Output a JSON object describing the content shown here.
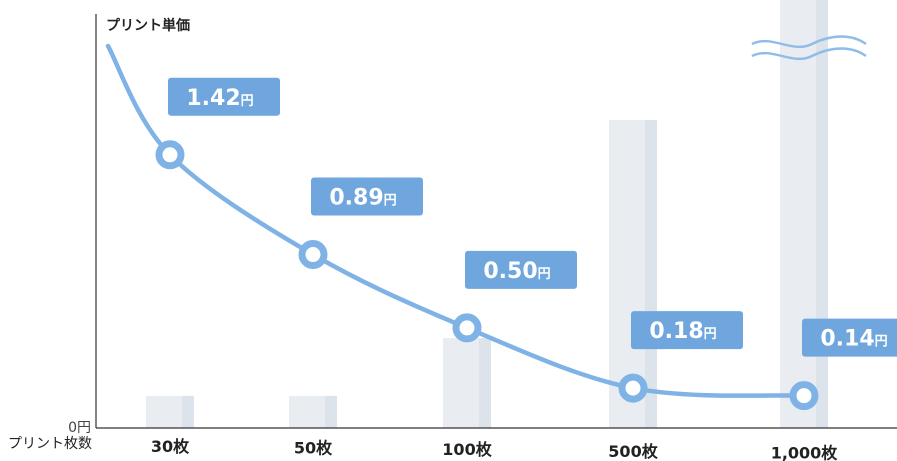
{
  "chart_data": {
    "type": "line",
    "ylabel": "プリント単価",
    "y_zero_label": "0円",
    "xlabel": "プリント枚数",
    "categories": [
      "30枚",
      "50枚",
      "100枚",
      "500枚",
      "1,000枚"
    ],
    "series": [
      {
        "values": [
          1.42,
          0.89,
          0.5,
          0.18,
          0.14
        ]
      }
    ],
    "data_labels": [
      {
        "number": "1.42",
        "unit": "円"
      },
      {
        "number": "0.89",
        "unit": "円"
      },
      {
        "number": "0.50",
        "unit": "円"
      },
      {
        "number": "0.18",
        "unit": "円"
      },
      {
        "number": "0.14",
        "unit": "円"
      }
    ],
    "ylim": [
      0,
      2.2
    ],
    "grid": false,
    "legend": "none",
    "background_bars": {
      "relative_heights": [
        0.05,
        0.05,
        0.14,
        0.48,
        "axis-break"
      ],
      "note_icon": "axis-break-wave-icon"
    },
    "colors": {
      "line": "#7fb2e5",
      "label_box": "#6fa6dd",
      "label_text": "#ffffff",
      "marker_fill": "#ffffff",
      "bar": "#e9edf2",
      "axis": "#333333"
    }
  }
}
